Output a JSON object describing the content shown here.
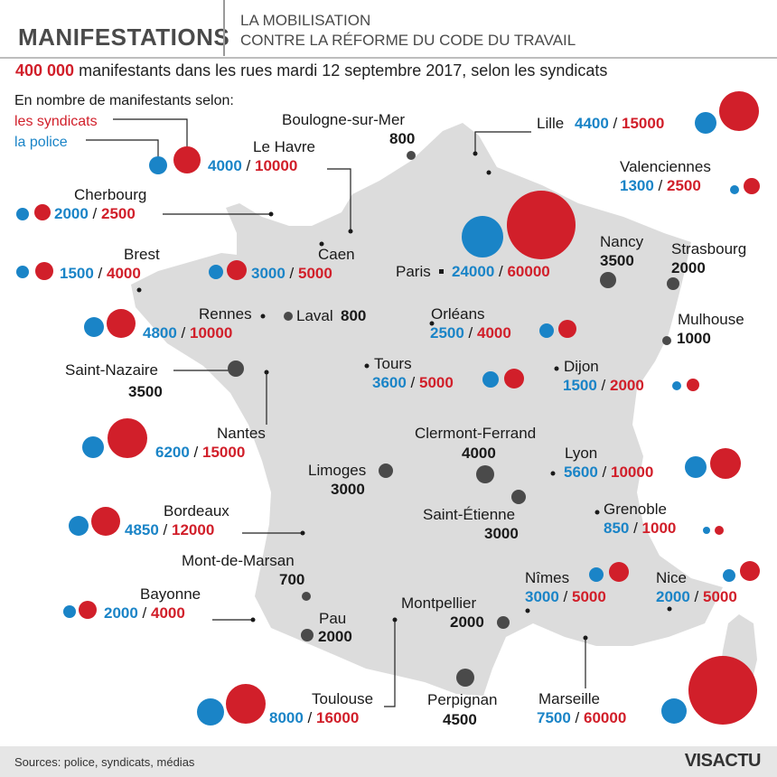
{
  "header": {
    "title": "MANIFESTATIONS",
    "subtitle_line1": "LA MOBILISATION",
    "subtitle_line2": "CONTRE LA RÉFORME DU CODE DU TRAVAIL"
  },
  "headline": {
    "highlight": "400 000",
    "text": " manifestants dans les rues mardi 12 septembre 2017, selon les syndicats"
  },
  "legend": {
    "title": "En nombre de manifestants selon:",
    "unions_label": "les syndicats",
    "police_label": "la police"
  },
  "colors": {
    "police": "#1a84c7",
    "unions": "#d11f2a",
    "single": "#4a4a4a",
    "land": "#dcdcdc"
  },
  "cities": [
    {
      "name": "Lille",
      "police": "4400",
      "unions": "15000"
    },
    {
      "name": "Valenciennes",
      "police": "1300",
      "unions": "2500"
    },
    {
      "name": "Le Havre",
      "police": "4000",
      "unions": "10000"
    },
    {
      "name": "Cherbourg",
      "police": "2000",
      "unions": "2500"
    },
    {
      "name": "Brest",
      "police": "1500",
      "unions": "4000"
    },
    {
      "name": "Caen",
      "police": "3000",
      "unions": "5000"
    },
    {
      "name": "Paris",
      "police": "24000",
      "unions": "60000"
    },
    {
      "name": "Rennes",
      "police": "4800",
      "unions": "10000"
    },
    {
      "name": "Orléans",
      "police": "2500",
      "unions": "4000"
    },
    {
      "name": "Tours",
      "police": "3600",
      "unions": "5000"
    },
    {
      "name": "Dijon",
      "police": "1500",
      "unions": "2000"
    },
    {
      "name": "Nantes",
      "police": "6200",
      "unions": "15000"
    },
    {
      "name": "Lyon",
      "police": "5600",
      "unions": "10000"
    },
    {
      "name": "Bordeaux",
      "police": "4850",
      "unions": "12000"
    },
    {
      "name": "Grenoble",
      "police": "850",
      "unions": "1000"
    },
    {
      "name": "Nîmes",
      "police": "3000",
      "unions": "5000"
    },
    {
      "name": "Nice",
      "police": "2000",
      "unions": "5000"
    },
    {
      "name": "Bayonne",
      "police": "2000",
      "unions": "4000"
    },
    {
      "name": "Toulouse",
      "police": "8000",
      "unions": "16000"
    },
    {
      "name": "Marseille",
      "police": "7500",
      "unions": "60000"
    }
  ],
  "single_cities": [
    {
      "name": "Boulogne-sur-Mer",
      "count": "800"
    },
    {
      "name": "Nancy",
      "count": "3500"
    },
    {
      "name": "Strasbourg",
      "count": "2000"
    },
    {
      "name": "Laval",
      "count": "800"
    },
    {
      "name": "Mulhouse",
      "count": "1000"
    },
    {
      "name": "Saint-Nazaire",
      "count": "3500"
    },
    {
      "name": "Clermont-Ferrand",
      "count": "4000"
    },
    {
      "name": "Limoges",
      "count": "3000"
    },
    {
      "name": "Saint-Étienne",
      "count": "3000"
    },
    {
      "name": "Mont-de-Marsan",
      "count": "700"
    },
    {
      "name": "Montpellier",
      "count": "2000"
    },
    {
      "name": "Pau",
      "count": "2000"
    },
    {
      "name": "Perpignan",
      "count": "4500"
    }
  ],
  "footer": {
    "sources": "Sources: police, syndicats, médias",
    "brand": "VISACTU"
  }
}
